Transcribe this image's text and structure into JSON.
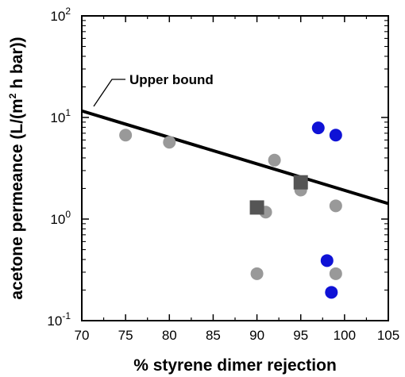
{
  "chart_data": {
    "type": "scatter",
    "xlabel": "% styrene dimer rejection",
    "ylabel_parts": [
      "acetone permeance (L/(m",
      "2",
      " h bar))"
    ],
    "xlim": [
      70,
      105
    ],
    "ylim": [
      0.1,
      100
    ],
    "y_scale": "log",
    "x_ticks": [
      70,
      75,
      80,
      85,
      90,
      95,
      100,
      105
    ],
    "x_tick_labels": [
      "70",
      "75",
      "80",
      "85",
      "90",
      "95",
      "100",
      "105"
    ],
    "y_ticks": [
      {
        "value": 0.1,
        "base": "10",
        "exp": "-1"
      },
      {
        "value": 1,
        "base": "10",
        "exp": "0"
      },
      {
        "value": 10,
        "base": "10",
        "exp": "1"
      },
      {
        "value": 100,
        "base": "10",
        "exp": "2"
      }
    ],
    "upper_bound": {
      "label": "Upper bound",
      "x": [
        70,
        105
      ],
      "y": [
        11.6,
        1.42
      ]
    },
    "series": [
      {
        "marker": "circle",
        "color": "#999999",
        "points": [
          {
            "x": 75,
            "y": 6.7
          },
          {
            "x": 80,
            "y": 5.7
          },
          {
            "x": 90,
            "y": 0.29
          },
          {
            "x": 91,
            "y": 1.17
          },
          {
            "x": 92,
            "y": 3.8
          },
          {
            "x": 95,
            "y": 1.93
          },
          {
            "x": 99,
            "y": 0.29
          },
          {
            "x": 99,
            "y": 1.35
          }
        ]
      },
      {
        "marker": "square",
        "color": "#555555",
        "points": [
          {
            "x": 90,
            "y": 1.3
          },
          {
            "x": 95,
            "y": 2.3
          }
        ]
      },
      {
        "marker": "circle",
        "color": "#0f12d6",
        "points": [
          {
            "x": 97,
            "y": 7.9
          },
          {
            "x": 98,
            "y": 0.39
          },
          {
            "x": 98.5,
            "y": 0.19
          },
          {
            "x": 99,
            "y": 6.7
          }
        ]
      }
    ]
  }
}
